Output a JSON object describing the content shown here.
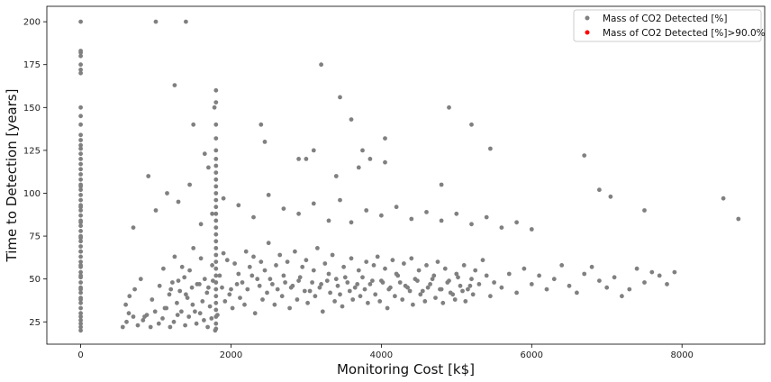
{
  "chart_data": {
    "type": "scatter",
    "xlabel": "Monitoring Cost [k$]",
    "ylabel": "Time to Detection [years]",
    "xlim": [
      -450,
      9100
    ],
    "ylim": [
      12,
      209
    ],
    "xticks": [
      0,
      2000,
      4000,
      6000,
      8000
    ],
    "yticks": [
      25,
      50,
      75,
      100,
      125,
      150,
      175,
      200
    ],
    "grid": false,
    "legend_placement": "top-right",
    "series": [
      {
        "name": "Mass of CO2 Detected [%]",
        "color": "#808080",
        "x": [
          0,
          0,
          0,
          0,
          0,
          0,
          0,
          0,
          0,
          0,
          0,
          0,
          0,
          0,
          0,
          0,
          0,
          0,
          0,
          0,
          0,
          0,
          0,
          0,
          0,
          0,
          0,
          0,
          0,
          0,
          0,
          0,
          0,
          0,
          0,
          0,
          0,
          0,
          0,
          0,
          0,
          0,
          0,
          0,
          0,
          0,
          0,
          0,
          0,
          0,
          0,
          0,
          0,
          0,
          0,
          0,
          0,
          0,
          0,
          0,
          560,
          610,
          640,
          700,
          760,
          830,
          880,
          930,
          990,
          1040,
          1090,
          1140,
          1190,
          1240,
          1290,
          1340,
          1390,
          1440,
          1490,
          1540,
          1590,
          1640,
          1690,
          1740,
          1790,
          1800,
          1800,
          1800,
          1800,
          1800,
          1800,
          1800,
          1800,
          1800,
          1800,
          1800,
          1800,
          1800,
          1800,
          1800,
          1800,
          1800,
          1800,
          1800,
          1800,
          1800,
          1800,
          1800,
          1800,
          1800,
          1800,
          1800,
          1800,
          1800,
          1800,
          1100,
          1200,
          1250,
          1300,
          1350,
          1400,
          1450,
          1500,
          1550,
          1600,
          1650,
          1700,
          1750,
          1850,
          1900,
          1950,
          2000,
          2050,
          2100,
          2150,
          2200,
          2250,
          2300,
          2350,
          2400,
          2450,
          2500,
          2550,
          2600,
          2650,
          2700,
          2750,
          2800,
          2850,
          2900,
          2950,
          3000,
          3050,
          3100,
          3150,
          3200,
          3250,
          3300,
          3350,
          3400,
          3450,
          3500,
          3550,
          3600,
          3650,
          3700,
          3750,
          3800,
          3850,
          3900,
          3950,
          4000,
          4050,
          4100,
          4150,
          4200,
          4250,
          4300,
          4350,
          4400,
          4450,
          4500,
          4550,
          4600,
          4650,
          4700,
          4750,
          4800,
          4850,
          4900,
          4950,
          5000,
          5050,
          5100,
          5150,
          5200,
          5250,
          5300,
          5350,
          5400,
          5450,
          5500,
          5600,
          5700,
          5800,
          5900,
          6000,
          6100,
          6200,
          6300,
          6400,
          6500,
          6600,
          6700,
          6800,
          6900,
          7000,
          7100,
          7200,
          7300,
          7400,
          7500,
          7600,
          7700,
          7800,
          7900,
          8550,
          8750,
          700,
          900,
          1000,
          1150,
          1300,
          1450,
          1600,
          1750,
          1900,
          2100,
          2300,
          2500,
          2700,
          2900,
          3100,
          3300,
          3450,
          3600,
          3800,
          4000,
          4200,
          4400,
          4600,
          4800,
          5000,
          5200,
          5400,
          5600,
          5800,
          6000,
          1250,
          1500,
          1650,
          1700,
          1780,
          1000,
          3200,
          3450,
          3600,
          4050,
          4900,
          5200,
          5450,
          1400,
          1800,
          2400,
          2450,
          2900,
          3000,
          3100,
          3400,
          3700,
          3750,
          3850,
          4050,
          4800,
          6700,
          6900,
          7050,
          7500,
          600,
          650,
          720,
          800,
          850,
          950,
          1050,
          1120,
          1180,
          1220,
          1280,
          1320,
          1380,
          1420,
          1480,
          1520,
          1580,
          1620,
          1680,
          1720,
          1760,
          1820,
          1880,
          1920,
          1980,
          2020,
          2080,
          2120,
          2180,
          2220,
          2280,
          2320,
          2380,
          2420,
          2480,
          2520,
          2580,
          2620,
          2680,
          2720,
          2780,
          2820,
          2880,
          2920,
          2980,
          3020,
          3080,
          3120,
          3180,
          3220,
          3280,
          3320,
          3380,
          3420,
          3480,
          3520,
          3580,
          3620,
          3680,
          3720,
          3780,
          3820,
          3880,
          3920,
          3980,
          4020,
          4080,
          4120,
          4180,
          4220,
          4280,
          4320,
          4380,
          4420,
          4480,
          4520,
          4580,
          4620,
          4680,
          4720,
          4780,
          4820,
          4880,
          4920,
          4980,
          5020,
          5080,
          5120,
          5180,
          5220
        ],
        "y": [
          20,
          22,
          24,
          26,
          28,
          30,
          33,
          36,
          39,
          42,
          45,
          48,
          51,
          54,
          57,
          60,
          63,
          66,
          69,
          72,
          75,
          78,
          81,
          84,
          87,
          90,
          93,
          96,
          99,
          102,
          105,
          108,
          111,
          114,
          117,
          120,
          123,
          126,
          128,
          131,
          134,
          140,
          145,
          150,
          170,
          172,
          175,
          180,
          182,
          183,
          200,
          38,
          44,
          52,
          58,
          66,
          74,
          83,
          92,
          104,
          22,
          25,
          30,
          28,
          23,
          26,
          29,
          22,
          31,
          24,
          27,
          33,
          22,
          25,
          29,
          31,
          23,
          28,
          35,
          24,
          30,
          26,
          22,
          27,
          20,
          21,
          24,
          28,
          32,
          36,
          40,
          44,
          48,
          52,
          56,
          60,
          64,
          68,
          72,
          76,
          80,
          84,
          88,
          92,
          96,
          100,
          104,
          108,
          112,
          116,
          120,
          125,
          132,
          140,
          160,
          56,
          44,
          63,
          49,
          57,
          41,
          55,
          68,
          47,
          62,
          50,
          45,
          58,
          52,
          65,
          61,
          44,
          59,
          53,
          48,
          66,
          57,
          63,
          50,
          60,
          55,
          71,
          47,
          58,
          64,
          52,
          60,
          45,
          66,
          49,
          57,
          61,
          43,
          55,
          68,
          47,
          59,
          53,
          64,
          50,
          41,
          57,
          48,
          62,
          45,
          55,
          51,
          60,
          47,
          58,
          63,
          49,
          56,
          44,
          61,
          53,
          48,
          59,
          45,
          62,
          50,
          55,
          43,
          58,
          47,
          52,
          60,
          44,
          56,
          49,
          41,
          53,
          46,
          58,
          44,
          50,
          55,
          47,
          61,
          52,
          40,
          48,
          45,
          53,
          42,
          56,
          47,
          52,
          44,
          50,
          58,
          46,
          42,
          53,
          57,
          49,
          45,
          51,
          40,
          44,
          56,
          48,
          54,
          52,
          47,
          54,
          97,
          85,
          80,
          110,
          90,
          100,
          95,
          105,
          82,
          88,
          97,
          93,
          86,
          99,
          91,
          88,
          94,
          84,
          96,
          83,
          90,
          87,
          92,
          85,
          89,
          84,
          88,
          82,
          86,
          80,
          83,
          79,
          163,
          140,
          123,
          115,
          150,
          200,
          175,
          156,
          143,
          132,
          150,
          140,
          126,
          200,
          153,
          140,
          130,
          120,
          120,
          125,
          110,
          115,
          125,
          120,
          118,
          105,
          122,
          102,
          98,
          90,
          35,
          40,
          44,
          50,
          28,
          38,
          46,
          33,
          41,
          48,
          36,
          43,
          51,
          39,
          45,
          31,
          47,
          37,
          42,
          34,
          49,
          29,
          45,
          37,
          41,
          33,
          47,
          39,
          35,
          44,
          52,
          30,
          46,
          38,
          42,
          50,
          35,
          44,
          40,
          48,
          33,
          46,
          38,
          51,
          43,
          36,
          48,
          40,
          45,
          31,
          49,
          42,
          37,
          46,
          34,
          51,
          43,
          38,
          47,
          40,
          44,
          36,
          49,
          41,
          37,
          48,
          33,
          45,
          40,
          52,
          38,
          46,
          43,
          35,
          49,
          41,
          37,
          45,
          50,
          39,
          44,
          36,
          48,
          42,
          38,
          51,
          43,
          37,
          46,
          41
        ]
      },
      {
        "name": "Mass of CO2 Detected [%]>90.0%",
        "color": "#ff0000",
        "x": [],
        "y": []
      }
    ]
  }
}
